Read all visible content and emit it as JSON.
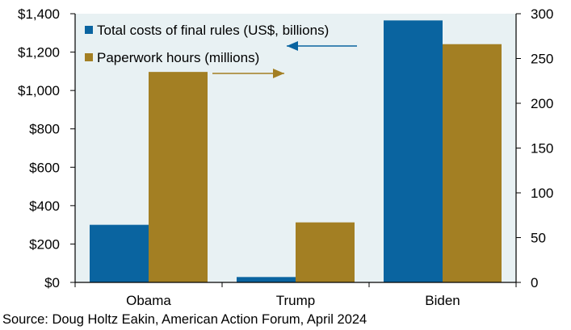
{
  "chart_data": {
    "type": "bar",
    "categories": [
      "Obama",
      "Trump",
      "Biden"
    ],
    "series": [
      {
        "name": "Total costs of final rules (US$, billions)",
        "axis": "left",
        "color": "#0a64a0",
        "values": [
          300,
          28,
          1365
        ]
      },
      {
        "name": "Paperwork hours (millions)",
        "axis": "right",
        "color": "#a37f23",
        "values": [
          235,
          67,
          266
        ]
      }
    ],
    "y_left": {
      "min": 0,
      "max": 1400,
      "ticks": [
        0,
        200,
        400,
        600,
        800,
        1000,
        1200,
        1400
      ],
      "tick_labels": [
        "$0",
        "$200",
        "$400",
        "$600",
        "$800",
        "$1,000",
        "$1,200",
        "$1,400"
      ]
    },
    "y_right": {
      "min": 0,
      "max": 300,
      "ticks": [
        0,
        50,
        100,
        150,
        200,
        250,
        300
      ],
      "tick_labels": [
        "0",
        "50",
        "100",
        "150",
        "200",
        "250",
        "300"
      ]
    },
    "xlabel": "",
    "ylabel": "",
    "legend_position": "top-left",
    "plot_background": "#e8f1f3",
    "grid": false
  },
  "source": "Source: Doug Holtz Eakin, American Action Forum, April 2024"
}
